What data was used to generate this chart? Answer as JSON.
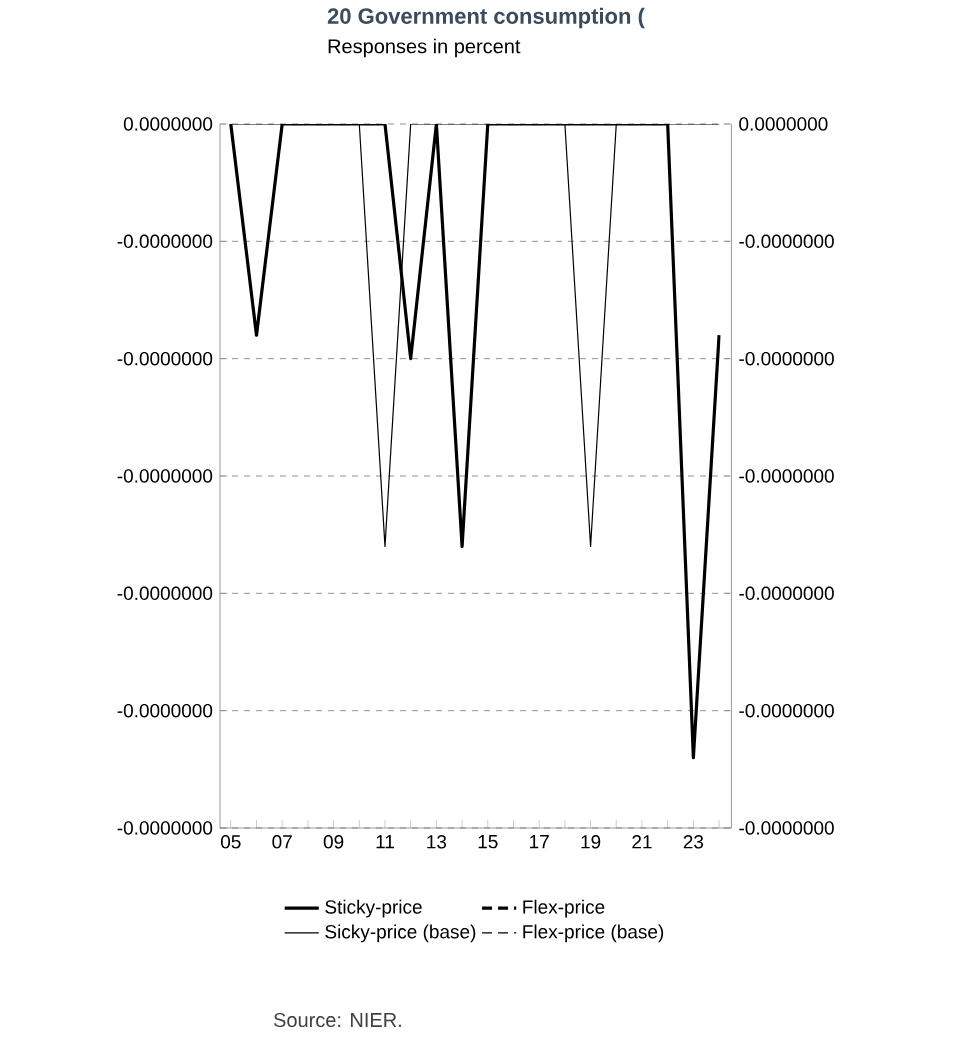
{
  "chart_data": {
    "type": "line",
    "title": "20 Government consumption (",
    "subtitle": "Responses in percent",
    "x": [
      2005,
      2006,
      2007,
      2008,
      2009,
      2010,
      2011,
      2012,
      2013,
      2014,
      2015,
      2016,
      2017,
      2018,
      2019,
      2020,
      2021,
      2022,
      2023,
      2024
    ],
    "series": [
      {
        "name": "Sticky-price",
        "color": "#000000",
        "line_style": "solid",
        "values": [
          0,
          -9e-09,
          0,
          0,
          0,
          0,
          0,
          -1e-08,
          0,
          -1.8e-08,
          0,
          0,
          0,
          0,
          0,
          0,
          0,
          0,
          -2.7e-08,
          -9e-09
        ]
      },
      {
        "name": "Flex-price",
        "color": "#000000",
        "line_style": "dashed",
        "values": [
          null,
          null,
          null,
          null,
          null,
          null,
          null,
          null,
          null,
          null,
          null,
          null,
          null,
          null,
          null,
          null,
          null,
          null,
          null,
          null
        ]
      },
      {
        "name": "Sicky-price (base)",
        "color": "#000000",
        "line_style": "solid",
        "values": [
          0,
          0,
          0,
          0,
          0,
          0,
          -1.8e-08,
          0,
          0,
          0,
          0,
          0,
          0,
          0,
          -1.8e-08,
          0,
          0,
          0,
          0,
          0
        ]
      },
      {
        "name": "Flex-price (base)",
        "color": "#000000",
        "line_style": "dashed",
        "values": [
          null,
          null,
          null,
          null,
          null,
          null,
          null,
          null,
          null,
          null,
          null,
          null,
          null,
          null,
          null,
          null,
          null,
          null,
          null,
          null
        ]
      }
    ],
    "xlim": [
      2004.58,
      2024.48
    ],
    "xticks": [
      {
        "value": 2005,
        "label": "05"
      },
      {
        "value": 2006,
        "label": null
      },
      {
        "value": 2007,
        "label": "07"
      },
      {
        "value": 2008,
        "label": null
      },
      {
        "value": 2009,
        "label": "09"
      },
      {
        "value": 2010,
        "label": null
      },
      {
        "value": 2011,
        "label": "11"
      },
      {
        "value": 2012,
        "label": null
      },
      {
        "value": 2013,
        "label": "13"
      },
      {
        "value": 2014,
        "label": null
      },
      {
        "value": 2015,
        "label": "15"
      },
      {
        "value": 2016,
        "label": null
      },
      {
        "value": 2017,
        "label": "17"
      },
      {
        "value": 2018,
        "label": null
      },
      {
        "value": 2019,
        "label": "19"
      },
      {
        "value": 2020,
        "label": null
      },
      {
        "value": 2021,
        "label": "21"
      },
      {
        "value": 2022,
        "label": null
      },
      {
        "value": 2023,
        "label": "23"
      },
      {
        "value": 2024,
        "label": null
      }
    ],
    "ylim": [
      -3e-08,
      0
    ],
    "yticks": [
      {
        "value": 0,
        "label": "0.0000000"
      },
      {
        "value": -5e-09,
        "label": "-0.0000000"
      },
      {
        "value": -1e-08,
        "label": "-0.0000000"
      },
      {
        "value": -1.5e-08,
        "label": "-0.0000000"
      },
      {
        "value": -2e-08,
        "label": "-0.0000000"
      },
      {
        "value": -2.5e-08,
        "label": "-0.0000000"
      },
      {
        "value": -3e-08,
        "label": "-0.0000000"
      }
    ],
    "y2lim": [
      -3e-08,
      0
    ],
    "y2ticks": [
      {
        "value": 0,
        "label": "0.0000000"
      },
      {
        "value": -5e-09,
        "label": "-0.0000000"
      },
      {
        "value": -1e-08,
        "label": "-0.0000000"
      },
      {
        "value": -1.5e-08,
        "label": "-0.0000000"
      },
      {
        "value": -2e-08,
        "label": "-0.0000000"
      },
      {
        "value": -2.5e-08,
        "label": "-0.0000000"
      },
      {
        "value": -3e-08,
        "label": "-0.0000000"
      }
    ],
    "grid": "y",
    "legend": "bottom",
    "marker": "none",
    "annotations": [
      "Source: NIER."
    ]
  }
}
